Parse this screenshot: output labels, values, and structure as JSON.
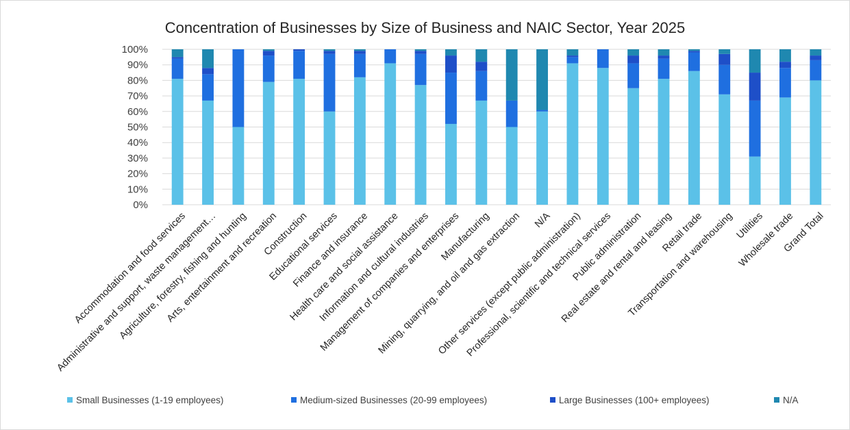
{
  "chart_data": {
    "type": "bar",
    "stacked": true,
    "percent": true,
    "title": "Concentration of Businesses by Size of Business and NAIC Sector, Year 2025",
    "xlabel": "",
    "ylabel": "",
    "ylim": [
      0,
      100
    ],
    "yticks": [
      "0%",
      "10%",
      "20%",
      "30%",
      "40%",
      "50%",
      "60%",
      "70%",
      "80%",
      "90%",
      "100%"
    ],
    "grid": true,
    "legend_position": "bottom",
    "categories": [
      "Accommodation and food services",
      "Administrative and support, waste management…",
      "Agriculture, forestry, fishing and hunting",
      "Arts, entertainment and recreation",
      "Construction",
      "Educational services",
      "Finance and insurance",
      "Health care and social assistance",
      "Information and cultural industries",
      "Management of companies and enterprises",
      "Manufacturing",
      "Mining, quarrying, and oil and gas extraction",
      "N/A",
      "Other services (except public administration)",
      "Professional, scientific and technical services",
      "Public administration",
      "Real estate and rental and leasing",
      "Retail trade",
      "Transportation and warehousing",
      "Utilities",
      "Wholesale trade",
      "Grand Total"
    ],
    "series": [
      {
        "name": "Small Businesses (1-19 employees)",
        "color": "#5bc1e8",
        "values": [
          81,
          67,
          50,
          79,
          81,
          60,
          82,
          91,
          77,
          52,
          67,
          50,
          60,
          91,
          88,
          75,
          81,
          86,
          71,
          31,
          69,
          80
        ]
      },
      {
        "name": "Medium-sized Businesses (20-99 employees)",
        "color": "#1f6fe0",
        "values": [
          13,
          17,
          50,
          17,
          18,
          37,
          15,
          9,
          20,
          33,
          19,
          17,
          1,
          4,
          12,
          16,
          13,
          12,
          19,
          36,
          19,
          13
        ]
      },
      {
        "name": "Large Businesses (100+ employees)",
        "color": "#1e4fc8",
        "values": [
          1,
          4,
          0,
          3,
          1,
          2,
          2,
          0,
          2,
          11,
          6,
          0,
          0,
          1,
          0,
          5,
          2,
          1,
          7,
          18,
          4,
          3
        ]
      },
      {
        "name": "N/A",
        "color": "#1f88b0",
        "values": [
          5,
          12,
          0,
          1,
          0,
          1,
          1,
          0,
          1,
          4,
          8,
          33,
          39,
          4,
          0,
          4,
          4,
          1,
          3,
          15,
          8,
          4
        ]
      }
    ]
  }
}
